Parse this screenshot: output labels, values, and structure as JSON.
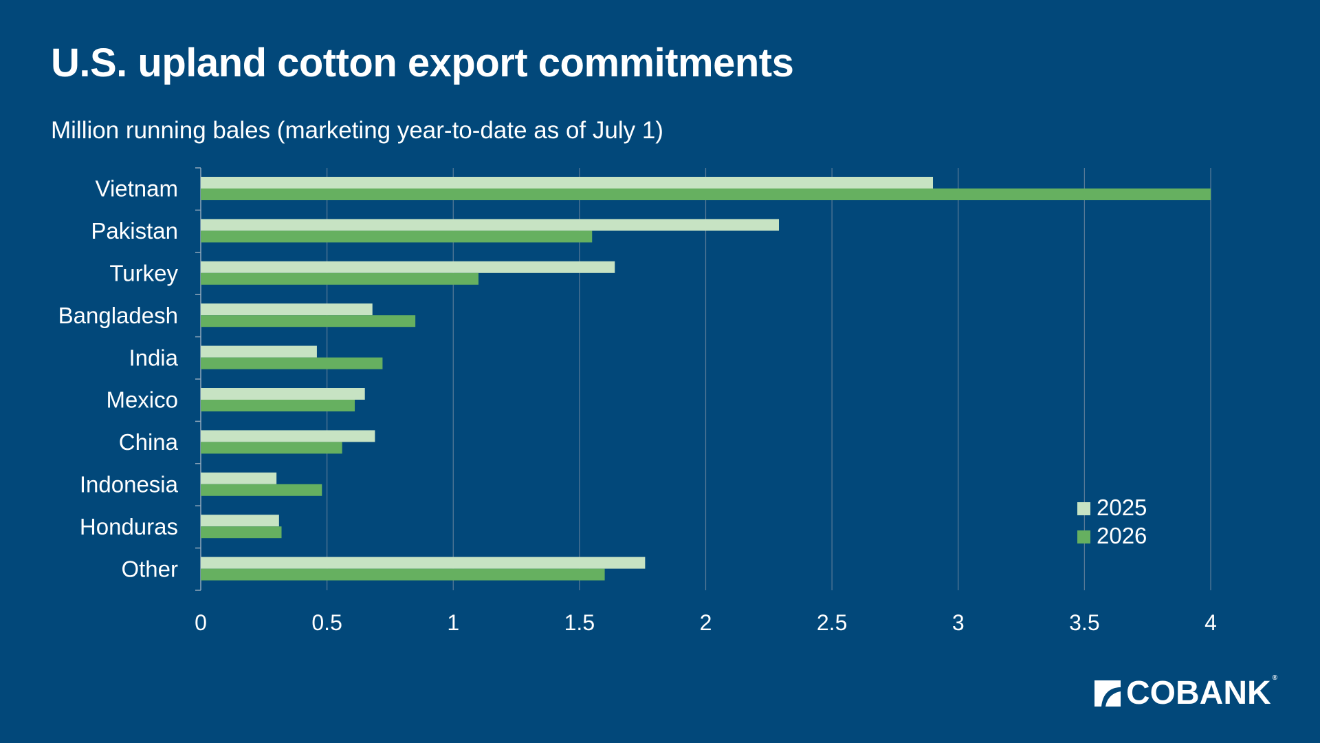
{
  "header": {
    "title": "U.S. upland cotton export commitments",
    "subtitle": "Million running bales (marketing year-to-date as of July 1)"
  },
  "brand": {
    "name": "COBANK",
    "registered_mark": "®"
  },
  "colors": {
    "background": "#02487A",
    "series_2025": "#C7E3C3",
    "series_2026": "#66B060",
    "gridline": "#5A7C98",
    "text": "#FFFFFF"
  },
  "chart_data": {
    "type": "bar",
    "orientation": "horizontal",
    "title": "U.S. upland cotton export commitments",
    "subtitle": "Million running bales (marketing year-to-date as of July 1)",
    "categories": [
      "Vietnam",
      "Pakistan",
      "Turkey",
      "Bangladesh",
      "India",
      "Mexico",
      "China",
      "Indonesia",
      "Honduras",
      "Other"
    ],
    "series": [
      {
        "name": "2025",
        "color": "#C7E3C3",
        "values": [
          2.9,
          2.29,
          1.64,
          0.68,
          0.46,
          0.65,
          0.69,
          0.3,
          0.31,
          1.76
        ]
      },
      {
        "name": "2026",
        "color": "#66B060",
        "values": [
          4.0,
          1.55,
          1.1,
          0.85,
          0.72,
          0.61,
          0.56,
          0.48,
          0.32,
          1.6
        ]
      }
    ],
    "xlim": [
      0,
      4
    ],
    "xticks": [
      "0",
      "0.5",
      "1",
      "1.5",
      "2",
      "2.5",
      "3",
      "3.5",
      "4"
    ],
    "grid": true,
    "legend": "bottom-right"
  }
}
